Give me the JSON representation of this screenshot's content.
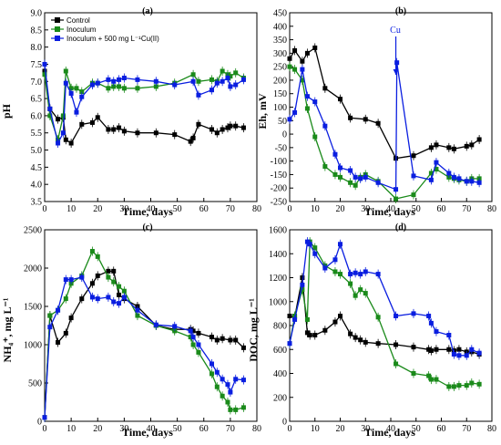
{
  "colors": {
    "Control": "#000000",
    "Inoculum": "#1a8a1a",
    "Inoculum + 500 mg L⁻¹Cu(II)": "#0a1ee0"
  },
  "chart_data": [
    {
      "type": "line",
      "panel": "(a)",
      "ylabel": "pH",
      "xlabel": "Time, days",
      "xlim": [
        0,
        80
      ],
      "ylim": [
        3.5,
        9.0
      ],
      "xticks": [
        0,
        10,
        20,
        30,
        40,
        50,
        60,
        70,
        80
      ],
      "yticks": [
        "3.5",
        "4.0",
        "4.5",
        "5.0",
        "5.5",
        "6.0",
        "6.5",
        "7.0",
        "7.5",
        "8.0",
        "8.5",
        "9.0"
      ],
      "legend_position": "top-left",
      "series": [
        {
          "name": "Control",
          "x": [
            0,
            2,
            5,
            7,
            8,
            10,
            14,
            18,
            20,
            24,
            26,
            28,
            30,
            35,
            42,
            49,
            55,
            56,
            58,
            63,
            65,
            67,
            69,
            70,
            72,
            75
          ],
          "y": [
            7.3,
            6.2,
            5.9,
            5.95,
            5.3,
            5.2,
            5.75,
            5.8,
            5.95,
            5.6,
            5.6,
            5.65,
            5.55,
            5.5,
            5.5,
            5.45,
            5.25,
            5.35,
            5.75,
            5.6,
            5.5,
            5.6,
            5.65,
            5.7,
            5.7,
            5.65
          ]
        },
        {
          "name": "Inoculum",
          "x": [
            0,
            2,
            5,
            7,
            8,
            10,
            12,
            14,
            18,
            20,
            24,
            26,
            28,
            30,
            35,
            42,
            49,
            56,
            58,
            63,
            65,
            67,
            69,
            70,
            72,
            75
          ],
          "y": [
            7.2,
            6.0,
            5.3,
            6.0,
            7.3,
            6.8,
            6.8,
            6.7,
            6.95,
            6.95,
            6.8,
            6.85,
            6.85,
            6.8,
            6.8,
            6.85,
            6.95,
            7.2,
            7.0,
            7.05,
            7.0,
            7.3,
            7.2,
            7.15,
            7.25,
            7.1
          ]
        },
        {
          "name": "Inoculum + 500 mg L⁻¹Cu(II)",
          "x": [
            0,
            2,
            5,
            7,
            8,
            10,
            12,
            14,
            18,
            20,
            24,
            26,
            28,
            30,
            35,
            42,
            49,
            56,
            58,
            63,
            65,
            67,
            69,
            70,
            72,
            75
          ],
          "y": [
            7.5,
            6.2,
            5.2,
            5.5,
            6.95,
            6.65,
            6.1,
            6.55,
            6.9,
            6.95,
            7.05,
            7.0,
            7.05,
            7.1,
            7.05,
            7.0,
            6.9,
            7.0,
            6.6,
            6.75,
            6.95,
            7.0,
            7.1,
            6.85,
            6.9,
            7.05
          ]
        }
      ]
    },
    {
      "type": "line",
      "panel": "(b)",
      "ylabel": "Eh, mV",
      "xlabel": "Time, days",
      "xlim": [
        0,
        80
      ],
      "ylim": [
        -250,
        450
      ],
      "xticks": [
        0,
        10,
        20,
        30,
        40,
        50,
        60,
        70,
        80
      ],
      "yticks": [
        "-250",
        "-200",
        "-150",
        "-100",
        "-50",
        "0",
        "50",
        "100",
        "150",
        "200",
        "250",
        "300",
        "350",
        "400",
        "450"
      ],
      "annotation": {
        "text": "Cu",
        "x": 42,
        "y": 400
      },
      "series": [
        {
          "name": "Control",
          "x": [
            0,
            2,
            5,
            7,
            10,
            14,
            20,
            24,
            30,
            35,
            42,
            49,
            56,
            58,
            63,
            65,
            70,
            72,
            75
          ],
          "y": [
            280,
            310,
            270,
            300,
            320,
            170,
            130,
            60,
            55,
            40,
            -90,
            -80,
            -50,
            -40,
            -50,
            -55,
            -45,
            -40,
            -20
          ]
        },
        {
          "name": "Inoculum",
          "x": [
            0,
            2,
            5,
            7,
            10,
            14,
            18,
            20,
            24,
            26,
            28,
            30,
            35,
            42,
            49,
            56,
            58,
            63,
            65,
            67,
            70,
            72,
            75
          ],
          "y": [
            250,
            240,
            200,
            95,
            -10,
            -120,
            -150,
            -160,
            -180,
            -190,
            -160,
            -150,
            -175,
            -240,
            -225,
            -145,
            -130,
            -160,
            -165,
            -170,
            -175,
            -165,
            -165
          ]
        },
        {
          "name": "Inoculum + 500 mg L⁻¹Cu(II)",
          "x": [
            0,
            2,
            5,
            7,
            10,
            14,
            18,
            20,
            24,
            26,
            28,
            30,
            35,
            42,
            42.4,
            49,
            56,
            58,
            63,
            65,
            67,
            70,
            72,
            75
          ],
          "y": [
            55,
            80,
            240,
            140,
            120,
            30,
            -75,
            -125,
            -135,
            -160,
            -165,
            -160,
            -180,
            -205,
            265,
            -155,
            -170,
            -105,
            -145,
            -160,
            -165,
            -175,
            -175,
            -180
          ]
        }
      ]
    },
    {
      "type": "line",
      "panel": "(c)",
      "ylabel": "NH₄⁺, mg L⁻¹",
      "xlabel": "Time, days",
      "xlim": [
        0,
        80
      ],
      "ylim": [
        0,
        2500
      ],
      "xticks": [
        0,
        10,
        20,
        30,
        40,
        50,
        60,
        70,
        80
      ],
      "yticks": [
        "0",
        "500",
        "1000",
        "1500",
        "2000",
        "2500"
      ],
      "series": [
        {
          "name": "Control",
          "x": [
            0,
            2,
            5,
            8,
            10,
            14,
            18,
            20,
            24,
            26,
            28,
            30,
            35,
            42,
            49,
            55,
            56,
            58,
            63,
            65,
            67,
            70,
            72,
            75
          ],
          "y": [
            50,
            1380,
            1030,
            1150,
            1350,
            1600,
            1800,
            1900,
            1960,
            1960,
            1650,
            1600,
            1500,
            1250,
            1200,
            1200,
            1180,
            1150,
            1100,
            1060,
            1080,
            1060,
            1060,
            960
          ]
        },
        {
          "name": "Inoculum",
          "x": [
            0,
            2,
            5,
            8,
            10,
            14,
            18,
            20,
            24,
            26,
            28,
            30,
            35,
            42,
            49,
            55,
            56,
            58,
            63,
            65,
            67,
            69,
            70,
            72,
            75
          ],
          "y": [
            50,
            1380,
            1450,
            1600,
            1800,
            1900,
            2220,
            2150,
            1880,
            1820,
            1760,
            1700,
            1380,
            1250,
            1180,
            1100,
            1000,
            900,
            620,
            450,
            330,
            250,
            150,
            150,
            180
          ]
        },
        {
          "name": "Inoculum + 500 mg L⁻¹Cu(II)",
          "x": [
            0,
            2,
            5,
            8,
            10,
            14,
            18,
            20,
            24,
            26,
            28,
            30,
            35,
            42,
            49,
            55,
            56,
            58,
            63,
            65,
            67,
            69,
            70,
            72,
            75
          ],
          "y": [
            50,
            1230,
            1450,
            1850,
            1850,
            1880,
            1620,
            1600,
            1620,
            1560,
            1540,
            1620,
            1450,
            1260,
            1240,
            1180,
            1100,
            1000,
            750,
            640,
            550,
            480,
            380,
            550,
            540
          ]
        }
      ]
    },
    {
      "type": "line",
      "panel": "(d)",
      "ylabel": "DOC, mg L⁻¹",
      "xlabel": "Time, days",
      "xlim": [
        0,
        80
      ],
      "ylim": [
        0,
        1600
      ],
      "xticks": [
        0,
        10,
        20,
        30,
        40,
        50,
        60,
        70,
        80
      ],
      "yticks": [
        "0",
        "200",
        "400",
        "600",
        "800",
        "1000",
        "1200",
        "1400",
        "1600"
      ],
      "series": [
        {
          "name": "Control",
          "x": [
            0,
            2,
            5,
            7,
            8,
            10,
            14,
            18,
            20,
            24,
            26,
            28,
            30,
            35,
            42,
            49,
            55,
            56,
            58,
            63,
            65,
            67,
            70,
            72,
            75
          ],
          "y": [
            880,
            870,
            1200,
            740,
            720,
            720,
            760,
            830,
            880,
            730,
            700,
            680,
            660,
            650,
            640,
            620,
            600,
            590,
            600,
            600,
            590,
            600,
            580,
            580,
            560
          ]
        },
        {
          "name": "Inoculum",
          "x": [
            0,
            2,
            5,
            7,
            8,
            10,
            14,
            18,
            20,
            24,
            26,
            28,
            30,
            35,
            42,
            49,
            55,
            56,
            58,
            63,
            65,
            67,
            70,
            72,
            75
          ],
          "y": [
            650,
            880,
            1100,
            850,
            1500,
            1450,
            1300,
            1250,
            1230,
            1150,
            1050,
            1100,
            1070,
            870,
            480,
            400,
            380,
            350,
            350,
            290,
            290,
            300,
            300,
            320,
            310
          ]
        },
        {
          "name": "Inoculum + 500 mg L⁻¹Cu(II)",
          "x": [
            0,
            2,
            5,
            7,
            8,
            10,
            14,
            18,
            20,
            24,
            26,
            28,
            30,
            35,
            42,
            49,
            55,
            56,
            58,
            63,
            65,
            67,
            70,
            72,
            75
          ],
          "y": [
            650,
            850,
            1140,
            1500,
            1480,
            1400,
            1280,
            1350,
            1480,
            1230,
            1240,
            1230,
            1250,
            1230,
            880,
            900,
            880,
            820,
            750,
            720,
            560,
            550,
            550,
            600,
            570
          ]
        }
      ]
    }
  ]
}
